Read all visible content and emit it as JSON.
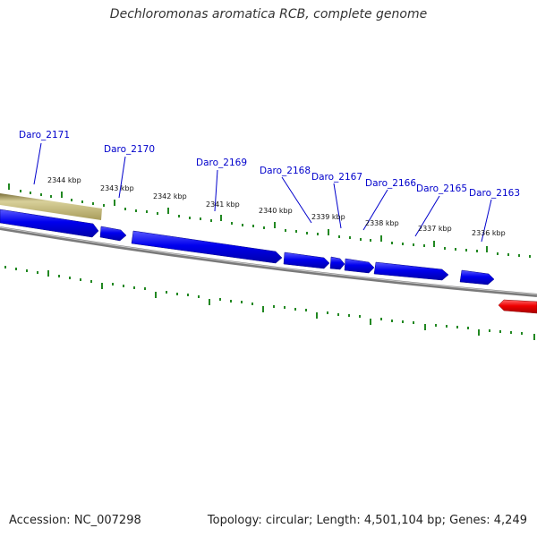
{
  "title": "Dechloromonas aromatica RCB, complete genome",
  "footer": {
    "accession_label": "Accession: NC_007298",
    "info": "Topology: circular; Length: 4,501,104 bp; Genes: 4,249"
  },
  "colors": {
    "gene": "#0000ee",
    "gene_highlight": "#ee0000",
    "region": "#c8be7a",
    "backbone": "#777777",
    "tick": "#228822",
    "label": "#0000cc"
  },
  "genes": [
    "Daro_2171",
    "Daro_2170",
    "Daro_2169",
    "Daro_2168",
    "Daro_2167",
    "Daro_2166",
    "Daro_2165",
    "Daro_2163"
  ],
  "scale_labels": [
    "2344 kbp",
    "2343 kbp",
    "2342 kbp",
    "2341 kbp",
    "2340 kbp",
    "2339 kbp",
    "2338 kbp",
    "2337 kbp",
    "2336 kbp"
  ]
}
